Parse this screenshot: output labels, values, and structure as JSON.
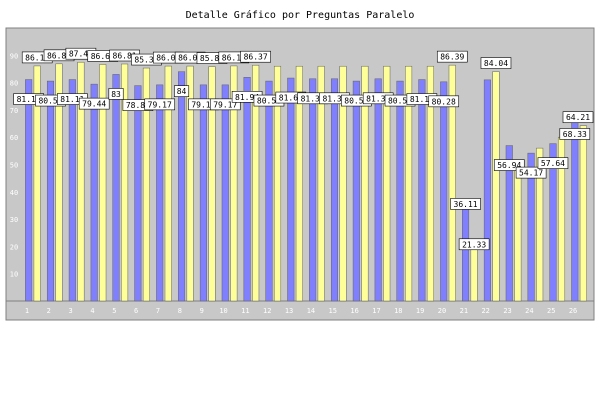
{
  "chart_data": {
    "type": "bar",
    "title": "Detalle Gráfico por Preguntas Paralelo",
    "xlabel": "",
    "ylabel": "",
    "ylim": [
      0,
      100
    ],
    "yticks": [
      10,
      20,
      30,
      40,
      50,
      60,
      70,
      80,
      90
    ],
    "grid": false,
    "legend": "none",
    "categories": [
      "1",
      "2",
      "3",
      "4",
      "5",
      "6",
      "7",
      "8",
      "9",
      "10",
      "11",
      "12",
      "13",
      "14",
      "15",
      "16",
      "17",
      "18",
      "19",
      "20",
      "21",
      "22",
      "23",
      "24",
      "25",
      "26"
    ],
    "series": [
      {
        "color": "#8080ff",
        "show_labels": [
          true,
          true,
          true,
          true,
          true,
          true,
          true,
          true,
          true,
          true,
          true,
          true,
          true,
          true,
          true,
          true,
          true,
          true,
          true,
          true,
          true,
          false,
          true,
          true,
          true,
          true
        ],
        "values": [
          81.11,
          80.56,
          81.11,
          79.44,
          83.0,
          78.89,
          79.17,
          84.0,
          79.17,
          79.17,
          81.94,
          80.56,
          81.67,
          81.39,
          81.39,
          80.56,
          81.39,
          80.56,
          81.11,
          80.28,
          36.11,
          81.0,
          56.94,
          54.17,
          57.64,
          68.33
        ]
      },
      {
        "color": "#ffff99",
        "show_labels": [
          true,
          true,
          true,
          true,
          true,
          true,
          true,
          true,
          true,
          true,
          true,
          false,
          false,
          false,
          false,
          false,
          false,
          false,
          false,
          true,
          true,
          true,
          false,
          false,
          false,
          true
        ],
        "values": [
          86.11,
          86.88,
          87.47,
          86.65,
          86.81,
          85.33,
          86.05,
          86.05,
          85.87,
          86.11,
          86.37,
          86.0,
          86.0,
          86.0,
          86.0,
          86.0,
          86.0,
          86.0,
          86.0,
          86.39,
          21.33,
          84.04,
          51.0,
          56.0,
          60.0,
          64.21
        ]
      }
    ]
  }
}
